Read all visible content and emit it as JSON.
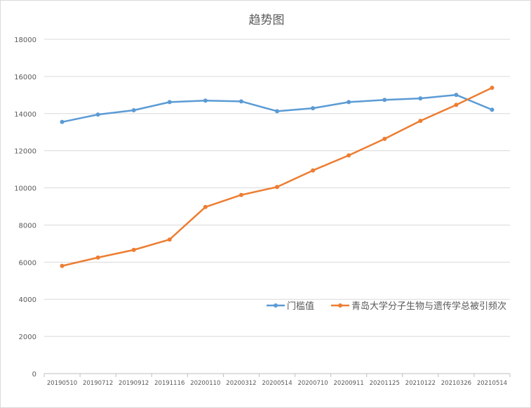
{
  "chart_data": {
    "type": "line",
    "title": "趋势图",
    "xlabel": "",
    "ylabel": "",
    "ylim": [
      0,
      18000
    ],
    "yticks": [
      "0",
      "2000",
      "4000",
      "6000",
      "8000",
      "10000",
      "12000",
      "14000",
      "16000",
      "18000"
    ],
    "ytick_values": [
      0,
      2000,
      4000,
      6000,
      8000,
      10000,
      12000,
      14000,
      16000,
      18000
    ],
    "grid": true,
    "legend_placement": "inside-lower-right",
    "categories": [
      "20190510",
      "20190712",
      "20190912",
      "20191116",
      "20200110",
      "20200312",
      "20200514",
      "20200710",
      "20200911",
      "20201125",
      "20210122",
      "20210326",
      "20210514"
    ],
    "series": [
      {
        "name": "门槛值",
        "color": "#5b9bd5",
        "values": [
          13550,
          13950,
          14180,
          14620,
          14700,
          14660,
          14130,
          14290,
          14620,
          14740,
          14820,
          15010,
          14210
        ]
      },
      {
        "name": "青岛大学分子生物与遗传学总被引频次",
        "color": "#ed7d31",
        "values": [
          5800,
          6250,
          6660,
          7220,
          8970,
          9620,
          10050,
          10940,
          11750,
          12640,
          13610,
          14470,
          15390
        ]
      }
    ]
  }
}
